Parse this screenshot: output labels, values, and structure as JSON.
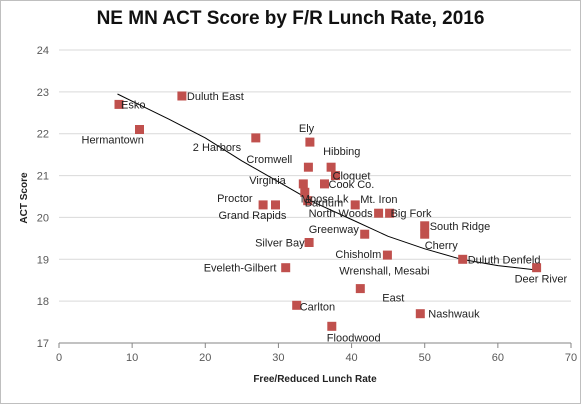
{
  "colors": {
    "marker": "#c0504d",
    "trendline": "#000000",
    "gridline": "#d9d9d9",
    "axis": "#868686"
  },
  "chart_data": {
    "type": "scatter",
    "title": "NE MN ACT Score by F/R Lunch Rate, 2016",
    "xlabel": "Free/Reduced Lunch Rate",
    "ylabel": "ACT Score",
    "xlim": [
      0,
      70
    ],
    "ylim": [
      17,
      24
    ],
    "x_ticks": [
      0,
      10,
      20,
      30,
      40,
      50,
      60,
      70
    ],
    "y_ticks": [
      17,
      18,
      19,
      20,
      21,
      22,
      23,
      24
    ],
    "grid": "horizontal",
    "legend": "none",
    "trendline": {
      "type": "polynomial",
      "x_range": [
        8,
        65
      ],
      "points": [
        [
          8,
          22.95
        ],
        [
          15,
          22.35
        ],
        [
          20,
          21.9
        ],
        [
          25,
          21.35
        ],
        [
          30,
          20.85
        ],
        [
          35,
          20.35
        ],
        [
          40,
          19.95
        ],
        [
          45,
          19.55
        ],
        [
          50,
          19.25
        ],
        [
          55,
          19.0
        ],
        [
          60,
          18.85
        ],
        [
          65,
          18.75
        ]
      ]
    },
    "points": [
      {
        "label": "Esko",
        "x": 8.2,
        "y": 22.7
      },
      {
        "label": "Hermantown",
        "x": 11.0,
        "y": 22.1
      },
      {
        "label": "Duluth East",
        "x": 16.8,
        "y": 22.9
      },
      {
        "label": "2 Harbors",
        "x": 26.9,
        "y": 21.9
      },
      {
        "label": "Ely",
        "x": 34.3,
        "y": 21.8
      },
      {
        "label": "Hibbing",
        "x": 37.2,
        "y": 21.2
      },
      {
        "label": "Cromwell",
        "x": 34.1,
        "y": 21.2
      },
      {
        "label": "Cloquet",
        "x": 37.8,
        "y": 21.0
      },
      {
        "label": "Virginia",
        "x": 33.4,
        "y": 20.8
      },
      {
        "label": "Cook Co.",
        "x": 36.3,
        "y": 20.8
      },
      {
        "label": "Moose Lk",
        "x": 33.6,
        "y": 20.6
      },
      {
        "label": "Proctor",
        "x": 27.9,
        "y": 20.3
      },
      {
        "label": "Grand Rapids",
        "x": 29.6,
        "y": 20.3
      },
      {
        "label": "Barnum",
        "x": 34.0,
        "y": 20.4
      },
      {
        "label": "Mt. Iron",
        "x": 40.5,
        "y": 20.3
      },
      {
        "label": "North Woods",
        "x": 43.7,
        "y": 20.1
      },
      {
        "label": "Big Fork",
        "x": 45.2,
        "y": 20.1
      },
      {
        "label": "South Ridge",
        "x": 50.0,
        "y": 19.8
      },
      {
        "label": "Cherry",
        "x": 50.0,
        "y": 19.6
      },
      {
        "label": "Greenway",
        "x": 41.8,
        "y": 19.6
      },
      {
        "label": "Silver Bay",
        "x": 34.2,
        "y": 19.4
      },
      {
        "label": "Chisholm",
        "x": 44.9,
        "y": 19.1
      },
      {
        "label": "Duluth Denfeld",
        "x": 55.2,
        "y": 19.0
      },
      {
        "label": "Deer River",
        "x": 65.3,
        "y": 18.8
      },
      {
        "label": "Eveleth-Gilbert",
        "x": 31.0,
        "y": 18.8
      },
      {
        "label": "Wrenshall, Mesabi East",
        "x": 41.2,
        "y": 18.3
      },
      {
        "label": "Carlton",
        "x": 32.5,
        "y": 17.9
      },
      {
        "label": "Nashwauk",
        "x": 49.4,
        "y": 17.7
      },
      {
        "label": "Floodwood",
        "x": 37.3,
        "y": 17.4
      }
    ]
  }
}
